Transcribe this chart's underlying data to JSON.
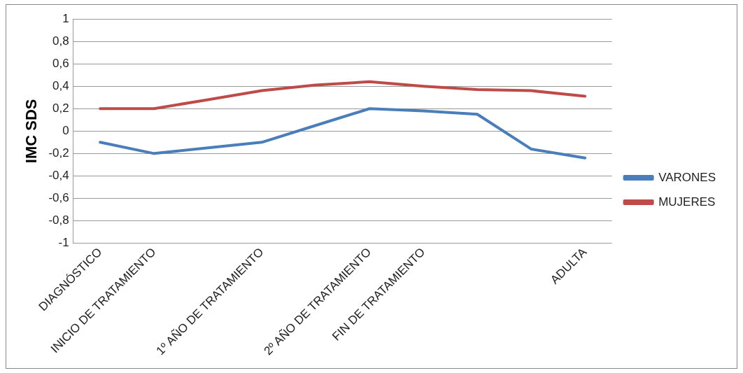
{
  "chart_data": {
    "type": "line",
    "ylabel": "IMC SDS",
    "categories": [
      "DIAGNÓSTICO",
      "INICIO DE TRATAMIENTO",
      null,
      "1º AÑO DE TRATAMIENTO",
      null,
      "2º AÑO DE TRATAMIENTO",
      "FIN DE TRATAMIENTO",
      null,
      null,
      "ADULTA"
    ],
    "series": [
      {
        "name": "VARONES",
        "color": "#4a7ebb",
        "values": [
          -0.1,
          -0.2,
          -0.15,
          -0.1,
          0.05,
          0.2,
          0.18,
          0.15,
          -0.16,
          -0.24
        ]
      },
      {
        "name": "MUJERES",
        "color": "#be4b48",
        "values": [
          0.2,
          0.2,
          0.28,
          0.36,
          0.41,
          0.44,
          0.4,
          0.37,
          0.36,
          0.31
        ]
      }
    ],
    "ylim": [
      -1,
      1
    ],
    "yticks": [
      -1,
      {
        "value": -0.8,
        "label": "-0,8"
      },
      {
        "value": -0.6,
        "label": "-0,6"
      },
      {
        "value": -0.4,
        "label": "-0,4"
      },
      {
        "value": -0.2,
        "label": "-0,2"
      },
      0,
      {
        "value": 0.2,
        "label": "0,2"
      },
      {
        "value": 0.4,
        "label": "0,4"
      },
      {
        "value": 0.6,
        "label": "0,6"
      },
      {
        "value": 0.8,
        "label": "0,8"
      },
      1
    ],
    "grid": "y",
    "legend": "right",
    "marker": "none",
    "line_style": "solid"
  }
}
